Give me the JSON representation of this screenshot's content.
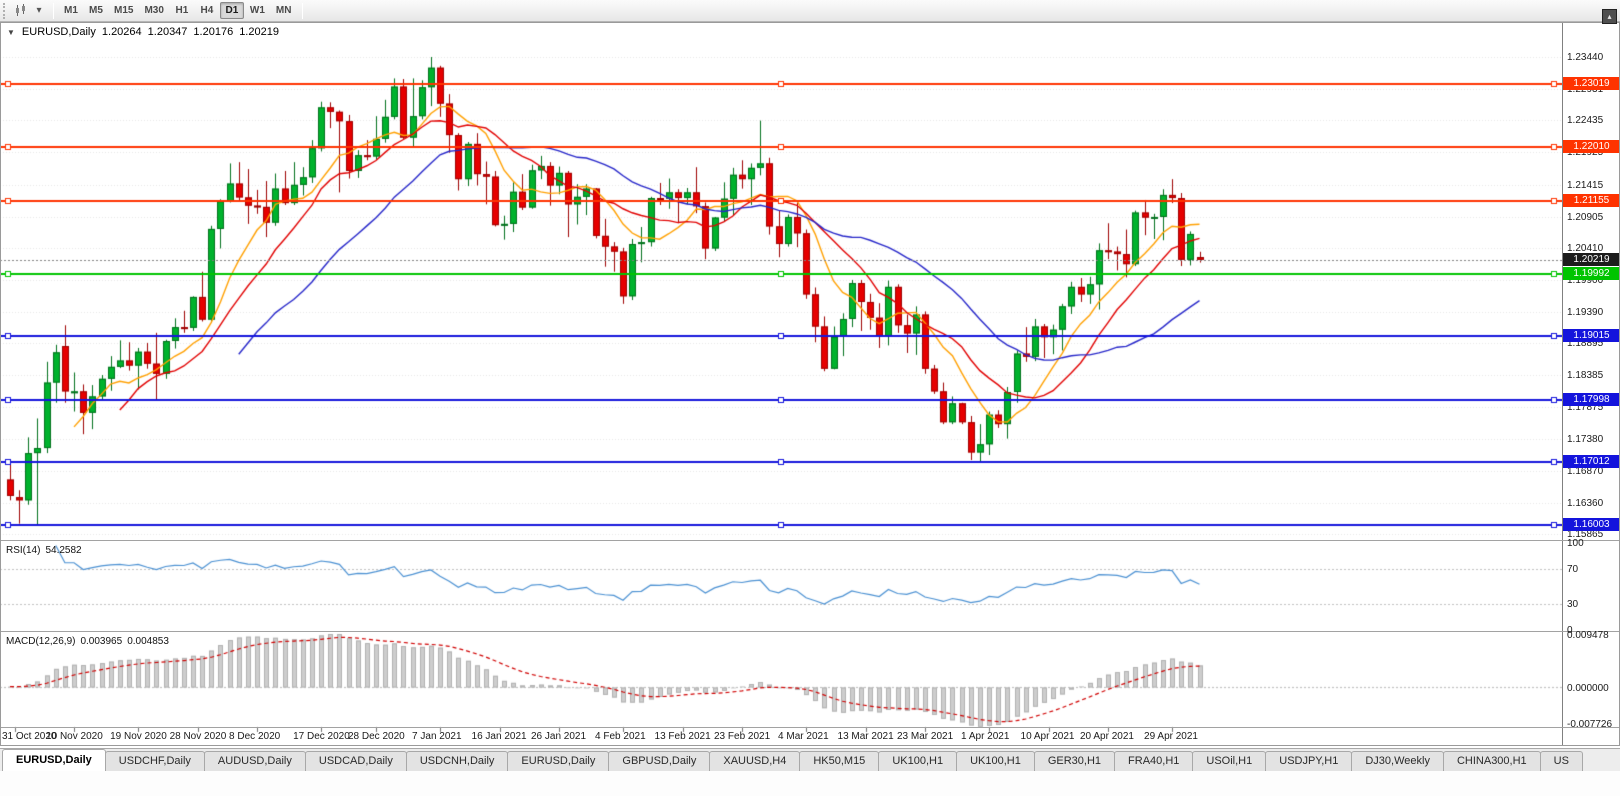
{
  "toolbar": {
    "timeframes": [
      "M1",
      "M5",
      "M15",
      "M30",
      "H1",
      "H4",
      "D1",
      "W1",
      "MN"
    ],
    "active_timeframe": "D1",
    "caret_glyph": "▾",
    "window_control_glyph": "▴"
  },
  "window": {
    "collapse_glyph": "▼",
    "title_symbol": "EURUSD,Daily",
    "ohlc": {
      "open": "1.20264",
      "high": "1.20347",
      "low": "1.20176",
      "close": "1.20219"
    }
  },
  "chart_data": {
    "type": "candlestick",
    "symbol": "EURUSD",
    "period": "Daily",
    "date_range": "30 Oct 2020 - 4 May 2021",
    "interval": "1 day",
    "price_range": [
      1.1577,
      1.2371
    ],
    "price_axis_ticks": [
      "1.23440",
      "1.22931",
      "1.22435",
      "1.21925",
      "1.21415",
      "1.20905",
      "1.20410",
      "1.19900",
      "1.19390",
      "1.18895",
      "1.18385",
      "1.17875",
      "1.17380",
      "1.16870",
      "1.16360",
      "1.15865"
    ],
    "time_labels": [
      {
        "text": "31 Oct 2020",
        "i": 0.5
      },
      {
        "text": "10 Nov 2020",
        "i": 7
      },
      {
        "text": "19 Nov 2020",
        "i": 14
      },
      {
        "text": "28 Nov 2020",
        "i": 20.5
      },
      {
        "text": "8 Dec 2020",
        "i": 27
      },
      {
        "text": "17 Dec 2020",
        "i": 34
      },
      {
        "text": "28 Dec 2020",
        "i": 40
      },
      {
        "text": "7 Jan 2021",
        "i": 47
      },
      {
        "text": "16 Jan 2021",
        "i": 53.5
      },
      {
        "text": "26 Jan 2021",
        "i": 60
      },
      {
        "text": "4 Feb 2021",
        "i": 67
      },
      {
        "text": "13 Feb 2021",
        "i": 73.5
      },
      {
        "text": "23 Feb 2021",
        "i": 80
      },
      {
        "text": "4 Mar 2021",
        "i": 87
      },
      {
        "text": "13 Mar 2021",
        "i": 93.5
      },
      {
        "text": "23 Mar 2021",
        "i": 100
      },
      {
        "text": "1 Apr 2021",
        "i": 107
      },
      {
        "text": "10 Apr 2021",
        "i": 113.5
      },
      {
        "text": "20 Apr 2021",
        "i": 120
      },
      {
        "text": "29 Apr 2021",
        "i": 127
      }
    ],
    "current_price": "1.20219",
    "candle_up_color": "#00B22D",
    "candle_down_color": "#E60000",
    "hlines": [
      {
        "price": 1.23019,
        "label": "1.23019",
        "color": "#FF3300"
      },
      {
        "price": 1.2201,
        "label": "1.22010",
        "color": "#FF3300"
      },
      {
        "price": 1.21155,
        "label": "1.21155",
        "color": "#FF3300"
      },
      {
        "price": 1.19992,
        "label": "1.19992",
        "color": "#00C400"
      },
      {
        "price": 1.19015,
        "label": "1.19015",
        "color": "#1414DC"
      },
      {
        "price": 1.17998,
        "label": "1.17998",
        "color": "#1414DC"
      },
      {
        "price": 1.17012,
        "label": "1.17012",
        "color": "#1414DC"
      },
      {
        "price": 1.16003,
        "label": "1.16003",
        "color": "#1414DC"
      }
    ],
    "moving_averages": [
      {
        "period": 8,
        "color": "#FFA000"
      },
      {
        "period": 13,
        "color": "#E10000"
      },
      {
        "period": 26,
        "color": "#2626C9"
      }
    ],
    "rsi": {
      "name": "RSI(14)",
      "value": "54.2582",
      "period": 14,
      "color": "#4A90D2",
      "levels": [
        70,
        30
      ],
      "axis_labels": [
        {
          "v": 100,
          "text": "100"
        },
        {
          "v": 70,
          "text": "70"
        },
        {
          "v": 30,
          "text": "30"
        },
        {
          "v": 0,
          "text": "0"
        }
      ]
    },
    "macd": {
      "name": "MACD(12,26,9)",
      "value_main": "0.003965",
      "value_signal": "0.004853",
      "fast": 12,
      "slow": 26,
      "signal": 9,
      "axis_max": "0.009478",
      "axis_zero": "0.000000",
      "axis_min": "-0.007726",
      "hist_fill": "#CDCDCD",
      "hist_stroke": "#B2B2B2",
      "signal_color": "#D00000"
    },
    "ohlc": [
      [
        1.1673,
        1.1704,
        1.164,
        1.1647
      ],
      [
        1.1645,
        1.1656,
        1.1603,
        1.164
      ],
      [
        1.164,
        1.174,
        1.1633,
        1.1715
      ],
      [
        1.1715,
        1.177,
        1.1602,
        1.1723
      ],
      [
        1.1723,
        1.186,
        1.1715,
        1.1827
      ],
      [
        1.1827,
        1.1887,
        1.1795,
        1.1875
      ],
      [
        1.1885,
        1.1918,
        1.1795,
        1.1813
      ],
      [
        1.1813,
        1.1843,
        1.1781,
        1.1813
      ],
      [
        1.1813,
        1.1824,
        1.1745,
        1.1779
      ],
      [
        1.1779,
        1.1823,
        1.1753,
        1.1805
      ],
      [
        1.1805,
        1.1839,
        1.1799,
        1.1833
      ],
      [
        1.1833,
        1.1869,
        1.1814,
        1.1852
      ],
      [
        1.1852,
        1.1894,
        1.185,
        1.1862
      ],
      [
        1.1862,
        1.1891,
        1.1846,
        1.1854
      ],
      [
        1.1854,
        1.1882,
        1.1816,
        1.1876
      ],
      [
        1.1876,
        1.189,
        1.1849,
        1.1857
      ],
      [
        1.1857,
        1.1906,
        1.18,
        1.1841
      ],
      [
        1.1841,
        1.1895,
        1.1833,
        1.1893
      ],
      [
        1.1893,
        1.1929,
        1.1881,
        1.1915
      ],
      [
        1.1915,
        1.1941,
        1.1906,
        1.1914
      ],
      [
        1.1914,
        1.1964,
        1.1909,
        1.1963
      ],
      [
        1.1963,
        1.2003,
        1.1924,
        1.1927
      ],
      [
        1.1927,
        1.2076,
        1.1922,
        1.2071
      ],
      [
        1.2071,
        1.2118,
        1.204,
        1.2115
      ],
      [
        1.2115,
        1.2175,
        1.2113,
        1.2143
      ],
      [
        1.2143,
        1.2177,
        1.2115,
        1.2121
      ],
      [
        1.2121,
        1.2166,
        1.2079,
        1.2108
      ],
      [
        1.2108,
        1.2133,
        1.2095,
        1.2106
      ],
      [
        1.2106,
        1.2147,
        1.2058,
        1.2081
      ],
      [
        1.2081,
        1.2159,
        1.2076,
        1.2135
      ],
      [
        1.2135,
        1.2163,
        1.2109,
        1.2112
      ],
      [
        1.2112,
        1.2177,
        1.2109,
        1.2141
      ],
      [
        1.2141,
        1.2169,
        1.2124,
        1.2153
      ],
      [
        1.2153,
        1.2212,
        1.2144,
        1.2199
      ],
      [
        1.2199,
        1.2273,
        1.2194,
        1.2264
      ],
      [
        1.2264,
        1.2272,
        1.2231,
        1.2257
      ],
      [
        1.2257,
        1.2259,
        1.2129,
        1.2242
      ],
      [
        1.2242,
        1.2252,
        1.2151,
        1.2163
      ],
      [
        1.2163,
        1.2196,
        1.2152,
        1.2188
      ],
      [
        1.2188,
        1.2212,
        1.218,
        1.2186
      ],
      [
        1.2186,
        1.225,
        1.2181,
        1.2214
      ],
      [
        1.2214,
        1.2276,
        1.2208,
        1.2249
      ],
      [
        1.2249,
        1.231,
        1.2245,
        1.2297
      ],
      [
        1.2297,
        1.2309,
        1.2214,
        1.2216
      ],
      [
        1.2216,
        1.231,
        1.22,
        1.225
      ],
      [
        1.225,
        1.2307,
        1.2245,
        1.2296
      ],
      [
        1.2296,
        1.2344,
        1.2266,
        1.2327
      ],
      [
        1.2327,
        1.233,
        1.2249,
        1.227
      ],
      [
        1.227,
        1.2285,
        1.2192,
        1.222
      ],
      [
        1.222,
        1.2223,
        1.2132,
        1.215
      ],
      [
        1.215,
        1.2209,
        1.2139,
        1.2206
      ],
      [
        1.2206,
        1.2223,
        1.214,
        1.2158
      ],
      [
        1.2158,
        1.2178,
        1.211,
        1.2154
      ],
      [
        1.2154,
        1.2163,
        1.2075,
        1.2077
      ],
      [
        1.2077,
        1.2092,
        1.2054,
        1.2079
      ],
      [
        1.2079,
        1.2145,
        1.2066,
        1.213
      ],
      [
        1.213,
        1.2158,
        1.2101,
        1.2105
      ],
      [
        1.2105,
        1.2173,
        1.2103,
        1.2164
      ],
      [
        1.2164,
        1.2187,
        1.215,
        1.2171
      ],
      [
        1.2171,
        1.2177,
        1.2108,
        1.214
      ],
      [
        1.214,
        1.217,
        1.2126,
        1.216
      ],
      [
        1.216,
        1.2163,
        1.2058,
        1.211
      ],
      [
        1.211,
        1.2142,
        1.2078,
        1.2122
      ],
      [
        1.2122,
        1.2142,
        1.2093,
        1.2135
      ],
      [
        1.2135,
        1.2136,
        1.2056,
        1.206
      ],
      [
        1.206,
        1.2087,
        1.2011,
        1.2043
      ],
      [
        1.2043,
        1.205,
        1.2003,
        1.2035
      ],
      [
        1.2035,
        1.2041,
        1.1952,
        1.1964
      ],
      [
        1.1964,
        1.2055,
        1.1958,
        1.2047
      ],
      [
        1.2047,
        1.2074,
        1.2018,
        1.205
      ],
      [
        1.205,
        1.2122,
        1.2043,
        1.212
      ],
      [
        1.212,
        1.2144,
        1.2109,
        1.2119
      ],
      [
        1.2119,
        1.2151,
        1.2103,
        1.2129
      ],
      [
        1.2129,
        1.2134,
        1.208,
        1.212
      ],
      [
        1.212,
        1.2136,
        1.211,
        1.2129
      ],
      [
        1.2129,
        1.2169,
        1.2096,
        1.2107
      ],
      [
        1.2107,
        1.2113,
        1.2023,
        1.204
      ],
      [
        1.204,
        1.209,
        1.2036,
        1.2089
      ],
      [
        1.2089,
        1.2145,
        1.2082,
        1.2119
      ],
      [
        1.2119,
        1.2168,
        1.2092,
        1.2157
      ],
      [
        1.2157,
        1.218,
        1.2135,
        1.215
      ],
      [
        1.215,
        1.2175,
        1.2109,
        1.2168
      ],
      [
        1.2168,
        1.2243,
        1.2156,
        1.2175
      ],
      [
        1.2175,
        1.2184,
        1.2062,
        1.2075
      ],
      [
        1.2075,
        1.2101,
        1.2026,
        1.2047
      ],
      [
        1.2047,
        1.2094,
        1.2043,
        1.209
      ],
      [
        1.209,
        1.2113,
        1.2042,
        1.2064
      ],
      [
        1.2064,
        1.207,
        1.196,
        1.1967
      ],
      [
        1.1967,
        1.1978,
        1.1891,
        1.1916
      ],
      [
        1.1916,
        1.1932,
        1.1845,
        1.1849
      ],
      [
        1.1849,
        1.1916,
        1.1848,
        1.19
      ],
      [
        1.19,
        1.1937,
        1.1869,
        1.1928
      ],
      [
        1.1928,
        1.199,
        1.1915,
        1.1985
      ],
      [
        1.1985,
        1.199,
        1.1909,
        1.1955
      ],
      [
        1.1955,
        1.1968,
        1.1911,
        1.193
      ],
      [
        1.193,
        1.1953,
        1.1882,
        1.1901
      ],
      [
        1.1901,
        1.1989,
        1.1886,
        1.1979
      ],
      [
        1.1979,
        1.1983,
        1.1906,
        1.1918
      ],
      [
        1.1918,
        1.1935,
        1.1874,
        1.1905
      ],
      [
        1.1905,
        1.1948,
        1.1871,
        1.1935
      ],
      [
        1.1935,
        1.194,
        1.1841,
        1.1849
      ],
      [
        1.1849,
        1.1855,
        1.1809,
        1.1813
      ],
      [
        1.1813,
        1.1827,
        1.1761,
        1.1764
      ],
      [
        1.1764,
        1.1805,
        1.1761,
        1.1794
      ],
      [
        1.1794,
        1.1795,
        1.1761,
        1.1764
      ],
      [
        1.1764,
        1.1774,
        1.1704,
        1.1716
      ],
      [
        1.1716,
        1.1761,
        1.1702,
        1.1729
      ],
      [
        1.1729,
        1.1781,
        1.1712,
        1.1776
      ],
      [
        1.1776,
        1.1783,
        1.1755,
        1.1761
      ],
      [
        1.1761,
        1.182,
        1.1738,
        1.1812
      ],
      [
        1.1812,
        1.1878,
        1.1795,
        1.1873
      ],
      [
        1.1873,
        1.1915,
        1.186,
        1.1868
      ],
      [
        1.1868,
        1.1928,
        1.1861,
        1.1916
      ],
      [
        1.1916,
        1.192,
        1.1866,
        1.1899
      ],
      [
        1.1899,
        1.1919,
        1.1872,
        1.1911
      ],
      [
        1.1911,
        1.1952,
        1.1878,
        1.1948
      ],
      [
        1.1948,
        1.1987,
        1.1936,
        1.1979
      ],
      [
        1.1979,
        1.1993,
        1.1955,
        1.1967
      ],
      [
        1.1967,
        1.1995,
        1.1952,
        1.1983
      ],
      [
        1.1983,
        1.2048,
        1.1943,
        1.2037
      ],
      [
        1.2037,
        1.208,
        1.2023,
        1.2035
      ],
      [
        1.2035,
        1.2043,
        1.2005,
        1.2031
      ],
      [
        1.2031,
        1.207,
        1.1994,
        1.2015
      ],
      [
        1.2015,
        1.21,
        1.2012,
        1.2097
      ],
      [
        1.2097,
        1.2117,
        1.2061,
        1.2089
      ],
      [
        1.2089,
        1.2095,
        1.2055,
        1.209
      ],
      [
        1.209,
        1.2134,
        1.2053,
        1.2125
      ],
      [
        1.2125,
        1.215,
        1.2112,
        1.212
      ],
      [
        1.212,
        1.2128,
        1.2012,
        1.2022
      ],
      [
        1.2022,
        1.2067,
        1.2013,
        1.2063
      ],
      [
        1.20264,
        1.20347,
        1.20176,
        1.20219
      ]
    ]
  },
  "tabs": [
    {
      "label": "EURUSD,Daily",
      "active": true
    },
    {
      "label": "USDCHF,Daily"
    },
    {
      "label": "AUDUSD,Daily"
    },
    {
      "label": "USDCAD,Daily"
    },
    {
      "label": "USDCNH,Daily"
    },
    {
      "label": "EURUSD,Daily"
    },
    {
      "label": "GBPUSD,Daily"
    },
    {
      "label": "XAUUSD,H4"
    },
    {
      "label": "HK50,M15"
    },
    {
      "label": "UK100,H1"
    },
    {
      "label": "UK100,H1"
    },
    {
      "label": "GER30,H1"
    },
    {
      "label": "FRA40,H1"
    },
    {
      "label": "USOil,H1"
    },
    {
      "label": "USDJPY,H1"
    },
    {
      "label": "DJ30,Weekly"
    },
    {
      "label": "CHINA300,H1"
    },
    {
      "label": "US"
    }
  ]
}
